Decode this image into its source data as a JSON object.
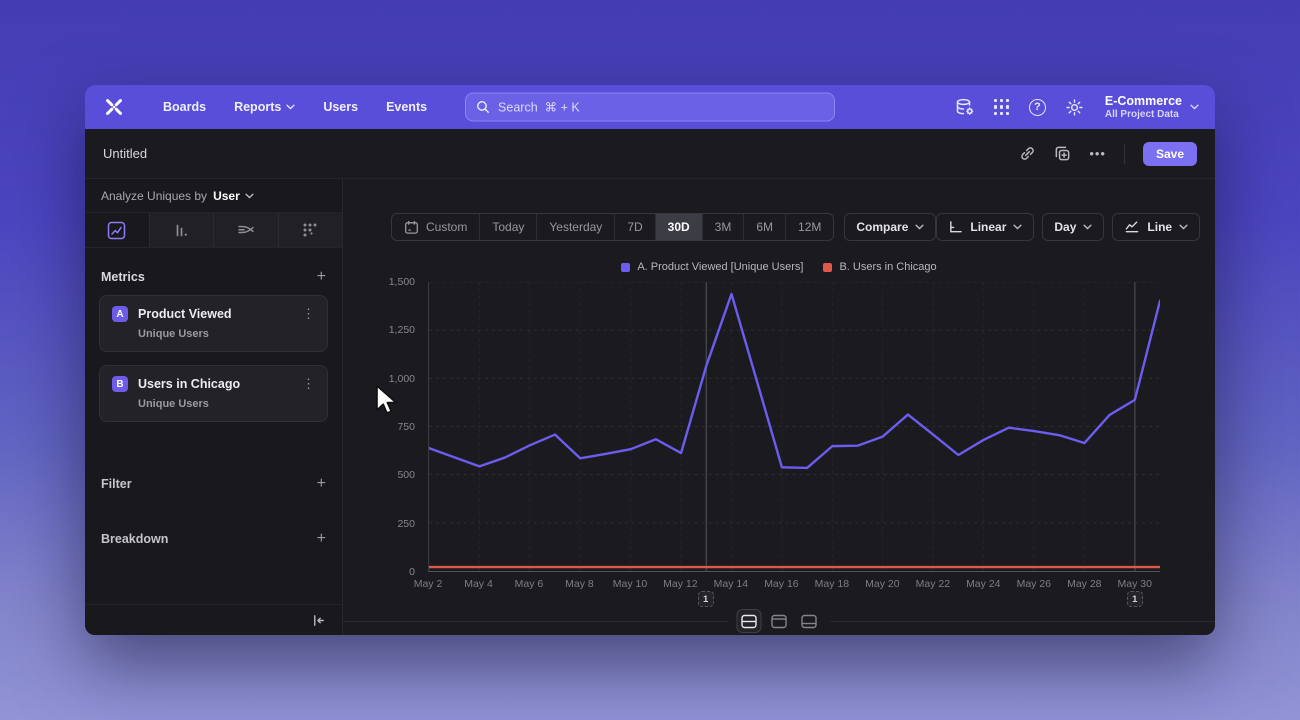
{
  "nav": {
    "items": [
      {
        "label": "Boards"
      },
      {
        "label": "Reports"
      },
      {
        "label": "Users"
      },
      {
        "label": "Events"
      }
    ],
    "search": {
      "placeholder": "Search  ⌘ + K"
    },
    "project": {
      "name": "E-Commerce",
      "subtitle": "All Project Data"
    }
  },
  "title_bar": {
    "title": "Untitled",
    "save_label": "Save",
    "more_label": "•••",
    "kebab": "⋮"
  },
  "sidebar": {
    "analyze_prefix": "Analyze Uniques by",
    "analyze_value": "User",
    "metrics_label": "Metrics",
    "add_label": "+",
    "metrics": [
      {
        "badge": "A",
        "name": "Product Viewed",
        "subtitle": "Unique Users"
      },
      {
        "badge": "B",
        "name": "Users in Chicago",
        "subtitle": "Unique Users"
      }
    ],
    "filter_label": "Filter",
    "breakdown_label": "Breakdown"
  },
  "controls": {
    "date_ranges": [
      "Custom",
      "Today",
      "Yesterday",
      "7D",
      "30D",
      "3M",
      "6M",
      "12M"
    ],
    "selected_range": "30D",
    "compare_label": "Compare",
    "scale_label": "Linear",
    "interval_label": "Day",
    "chart_style_label": "Line"
  },
  "chart_data": {
    "type": "line",
    "x": [
      "May 2",
      "May 3",
      "May 4",
      "May 5",
      "May 6",
      "May 7",
      "May 8",
      "May 9",
      "May 10",
      "May 11",
      "May 12",
      "May 13",
      "May 14",
      "May 15",
      "May 16",
      "May 17",
      "May 18",
      "May 19",
      "May 20",
      "May 21",
      "May 22",
      "May 23",
      "May 24",
      "May 25",
      "May 26",
      "May 27",
      "May 28",
      "May 29",
      "May 30",
      "May 31"
    ],
    "x_tick_labels": [
      "May 2",
      "May 4",
      "May 6",
      "May 8",
      "May 10",
      "May 12",
      "May 14",
      "May 16",
      "May 18",
      "May 20",
      "May 22",
      "May 24",
      "May 26",
      "May 28",
      "May 30"
    ],
    "ylim": [
      0,
      1500
    ],
    "yticks": [
      "1,500",
      "1,250",
      "1,000",
      "750",
      "500",
      "250",
      "0"
    ],
    "grid": true,
    "legend_position": "top-center",
    "series": [
      {
        "name": "A. Product Viewed [Unique Users]",
        "color": "#6c5cf0",
        "values": [
          638,
          590,
          543,
          588,
          652,
          708,
          585,
          608,
          632,
          684,
          612,
          1065,
          1438,
          990,
          538,
          535,
          648,
          650,
          698,
          812,
          708,
          602,
          680,
          744,
          726,
          705,
          664,
          810,
          888,
          1402
        ]
      },
      {
        "name": "B. Users in Chicago",
        "color": "#e0584a",
        "values": [
          20,
          20,
          20,
          20,
          20,
          20,
          20,
          20,
          20,
          20,
          20,
          20,
          20,
          20,
          20,
          20,
          20,
          20,
          20,
          20,
          20,
          20,
          20,
          20,
          20,
          20,
          20,
          20,
          20,
          20
        ]
      }
    ],
    "annotations": [
      {
        "x": "May 13",
        "label": "1"
      },
      {
        "x": "May 30",
        "label": "1"
      }
    ]
  }
}
